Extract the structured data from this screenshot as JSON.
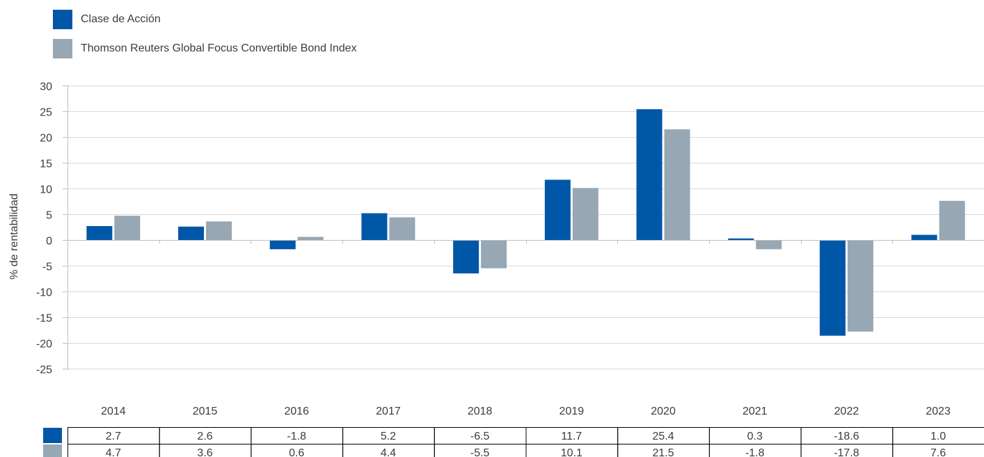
{
  "chart_data": {
    "type": "bar",
    "categories": [
      "2014",
      "2015",
      "2016",
      "2017",
      "2018",
      "2019",
      "2020",
      "2021",
      "2022",
      "2023"
    ],
    "series": [
      {
        "name": "Clase de Acción",
        "color": "#0057a8",
        "values": [
          2.7,
          2.6,
          -1.8,
          5.2,
          -6.5,
          11.7,
          25.4,
          0.3,
          -18.6,
          1.0
        ],
        "value_labels": [
          "2.7",
          "2.6",
          "-1.8",
          "5.2",
          "-6.5",
          "11.7",
          "25.4",
          "0.3",
          "-18.6",
          "1.0"
        ]
      },
      {
        "name": "Thomson Reuters Global Focus Convertible Bond Index",
        "color": "#97a7b3",
        "values": [
          4.7,
          3.6,
          0.6,
          4.4,
          -5.5,
          10.1,
          21.5,
          -1.8,
          -17.8,
          7.6
        ],
        "value_labels": [
          "4.7",
          "3.6",
          "0.6",
          "4.4",
          "-5.5",
          "10.1",
          "21.5",
          "-1.8",
          "-17.8",
          "7.6"
        ]
      }
    ],
    "ylabel": "% de rentabilidad",
    "ylim": [
      -25,
      30
    ],
    "yticks": [
      30,
      25,
      20,
      15,
      10,
      5,
      0,
      -5,
      -10,
      -15,
      -20,
      -25
    ],
    "ytick_labels": [
      "30",
      "25",
      "20",
      "15",
      "10",
      "5",
      "0",
      "-5",
      "-10",
      "-15",
      "-20",
      "-25"
    ],
    "grid": true,
    "legend_placement": "top-left",
    "data_table": true
  }
}
